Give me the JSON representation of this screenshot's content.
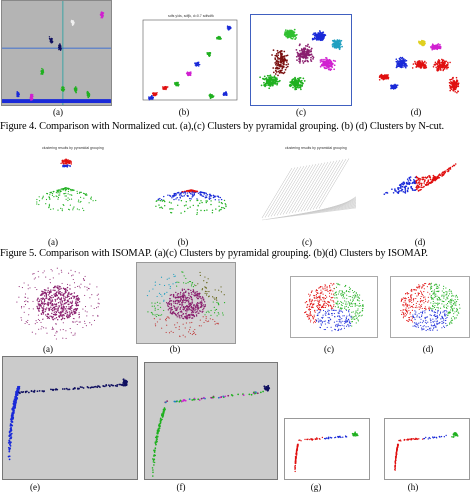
{
  "figure4": {
    "caption": "Figure 4. Comparison with Normalized cut.  (a),(c) Clusters by pyramidal grouping. (b) (d) Clusters by N-cut.",
    "labels": [
      "(a)",
      "(b)",
      "(c)",
      "(d)"
    ],
    "panel_b_title": "sdfs y/ds, sdfjk, d=0.7 sdfsdfk"
  },
  "figure5": {
    "caption": "Figure 5. Comparison with ISOMAP. (a)(c) Clusters by pyramidal grouping. (b)(d) Clusters by ISOMAP.",
    "labels": [
      "(a)",
      "(b)",
      "(c)",
      "(d)"
    ],
    "panel_titles": [
      "clustering results by pyramidal grouping",
      "clustering results by pyramidal grouping"
    ]
  },
  "figure6": {
    "labels": [
      "(a)",
      "(b)",
      "(c)",
      "(d)"
    ]
  },
  "figure7": {
    "labels": [
      "(e)",
      "(f)",
      "(g)",
      "(h)"
    ]
  },
  "colors": {
    "red": "#e01010",
    "blue": "#1a2ad8",
    "green": "#20b020",
    "purple": "#8a1f6e",
    "magenta": "#d020d0",
    "dark_red": "#7a1010",
    "gray_bg": "#c8c8c8",
    "navy": "#101060"
  }
}
